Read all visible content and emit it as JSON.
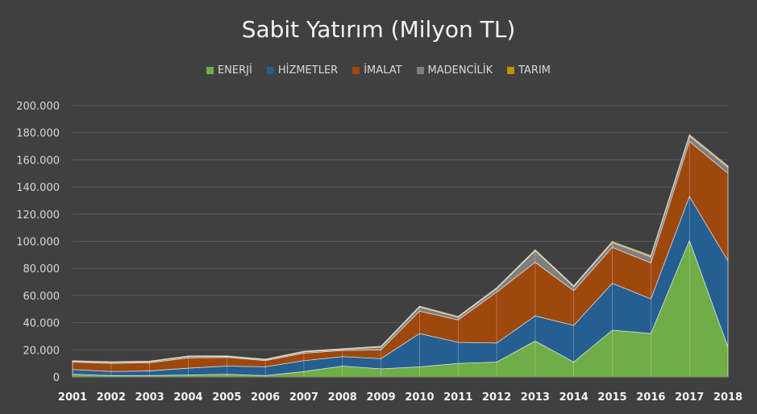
{
  "chart_data": {
    "type": "area",
    "stacked": true,
    "title": "Sabit Yatırım (Milyon TL)",
    "xlabel": "",
    "ylabel": "",
    "ylim": [
      0,
      200000
    ],
    "y_ticks": [
      "0",
      "20.000",
      "40.000",
      "60.000",
      "80.000",
      "100.000",
      "120.000",
      "140.000",
      "160.000",
      "180.000",
      "200.000"
    ],
    "y_tick_values": [
      0,
      20000,
      40000,
      60000,
      80000,
      100000,
      120000,
      140000,
      160000,
      180000,
      200000
    ],
    "grid": true,
    "legend_position": "top",
    "categories": [
      "2001",
      "2002",
      "2003",
      "2004",
      "2005",
      "2006",
      "2007",
      "2008",
      "2009",
      "2010",
      "2011",
      "2012",
      "2013",
      "2014",
      "2015",
      "2016",
      "2017",
      "2018"
    ],
    "series": [
      {
        "name": "ENERJİ",
        "color": "#70ad47",
        "values": [
          2000,
          1000,
          1000,
          1500,
          2000,
          1000,
          4000,
          8000,
          6000,
          7500,
          10000,
          11000,
          26500,
          11000,
          34500,
          32000,
          100500,
          22000
        ]
      },
      {
        "name": "HİZMETLER",
        "color": "#255e91",
        "values": [
          3500,
          3000,
          3500,
          5000,
          6000,
          6500,
          8000,
          7000,
          7500,
          24500,
          15500,
          14000,
          18500,
          27000,
          34500,
          25500,
          32500,
          63500
        ]
      },
      {
        "name": "İMALAT",
        "color": "#9e480e",
        "values": [
          5500,
          6000,
          6000,
          7500,
          6500,
          4500,
          5500,
          4500,
          6500,
          16500,
          16500,
          37500,
          39500,
          25500,
          26500,
          26500,
          40500,
          64500
        ]
      },
      {
        "name": "MADENCİLİK",
        "color": "#7f7f7f",
        "values": [
          600,
          800,
          800,
          1000,
          700,
          700,
          1000,
          800,
          2000,
          3000,
          2000,
          2500,
          8500,
          3000,
          3500,
          4500,
          4000,
          4500
        ]
      },
      {
        "name": "TARIM",
        "color": "#bf9000",
        "values": [
          400,
          400,
          400,
          500,
          400,
          400,
          500,
          500,
          700,
          700,
          600,
          700,
          800,
          700,
          800,
          900,
          1000,
          1000
        ]
      }
    ]
  }
}
